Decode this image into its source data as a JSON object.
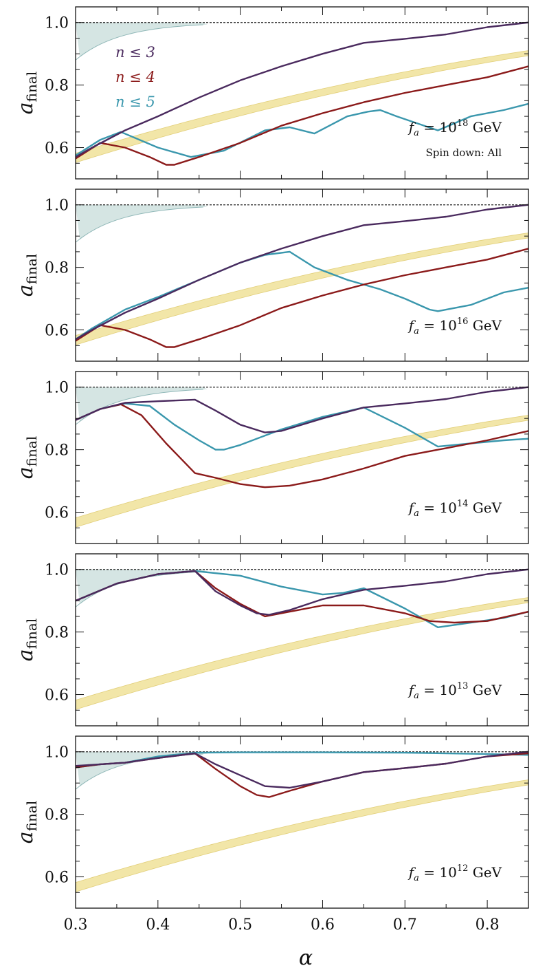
{
  "figure": {
    "xlabel": "α",
    "ylabel_main": "a",
    "ylabel_sub": "final",
    "xticks": [
      "0.3",
      "0.4",
      "0.5",
      "0.6",
      "0.7",
      "0.8"
    ],
    "yticks": [
      "0.6",
      "0.8",
      "1.0"
    ],
    "legend": [
      {
        "label": "n ≤ 3",
        "color": "#4a2a5e"
      },
      {
        "label": "n ≤ 4",
        "color": "#8b1a1a"
      },
      {
        "label": "n ≤ 5",
        "color": "#3a97ad"
      }
    ],
    "colors": {
      "band": "#f2e6a8",
      "band_edge": "#e2cf7a",
      "shade": "#b9d3d1",
      "shade_edge": "#8fb7b7"
    }
  },
  "chart_data": [
    {
      "type": "line",
      "annotation": "f_a = 10^18 GeV",
      "ann_prefix": "f",
      "ann_sub": "a",
      "ann_mid": " = 10",
      "ann_exp": "18",
      "ann_suffix": " GeV",
      "extra_text": "Spin down: All",
      "xlim": [
        0.3,
        0.85
      ],
      "ylim": [
        0.5,
        1.05
      ],
      "series": [
        {
          "name": "n ≤ 3",
          "x": [
            0.3,
            0.32,
            0.36,
            0.4,
            0.45,
            0.5,
            0.55,
            0.6,
            0.65,
            0.7,
            0.75,
            0.8,
            0.85
          ],
          "y": [
            0.57,
            0.6,
            0.655,
            0.7,
            0.76,
            0.815,
            0.86,
            0.9,
            0.935,
            0.948,
            0.962,
            0.985,
            1.0
          ]
        },
        {
          "name": "n ≤ 4",
          "x": [
            0.3,
            0.33,
            0.36,
            0.39,
            0.41,
            0.42,
            0.45,
            0.5,
            0.55,
            0.6,
            0.65,
            0.7,
            0.75,
            0.8,
            0.85
          ],
          "y": [
            0.565,
            0.615,
            0.6,
            0.57,
            0.545,
            0.545,
            0.57,
            0.615,
            0.67,
            0.71,
            0.745,
            0.775,
            0.8,
            0.825,
            0.86
          ]
        },
        {
          "name": "n ≤ 5",
          "x": [
            0.3,
            0.33,
            0.355,
            0.4,
            0.44,
            0.48,
            0.53,
            0.56,
            0.59,
            0.63,
            0.655,
            0.67,
            0.69,
            0.74,
            0.78,
            0.82,
            0.85
          ],
          "y": [
            0.575,
            0.625,
            0.65,
            0.6,
            0.57,
            0.59,
            0.655,
            0.665,
            0.645,
            0.7,
            0.715,
            0.72,
            0.7,
            0.655,
            0.7,
            0.72,
            0.74
          ]
        }
      ]
    },
    {
      "type": "line",
      "annotation": "f_a = 10^16 GeV",
      "ann_prefix": "f",
      "ann_sub": "a",
      "ann_mid": " = 10",
      "ann_exp": "16",
      "ann_suffix": " GeV",
      "xlim": [
        0.3,
        0.85
      ],
      "ylim": [
        0.5,
        1.05
      ],
      "series": [
        {
          "name": "n ≤ 3",
          "x": [
            0.3,
            0.32,
            0.36,
            0.4,
            0.45,
            0.5,
            0.55,
            0.6,
            0.65,
            0.7,
            0.75,
            0.8,
            0.85
          ],
          "y": [
            0.57,
            0.6,
            0.655,
            0.7,
            0.76,
            0.815,
            0.86,
            0.9,
            0.935,
            0.948,
            0.962,
            0.985,
            1.0
          ]
        },
        {
          "name": "n ≤ 4",
          "x": [
            0.3,
            0.33,
            0.36,
            0.39,
            0.41,
            0.42,
            0.45,
            0.5,
            0.55,
            0.6,
            0.65,
            0.7,
            0.75,
            0.8,
            0.85
          ],
          "y": [
            0.565,
            0.615,
            0.6,
            0.57,
            0.545,
            0.545,
            0.57,
            0.615,
            0.67,
            0.71,
            0.745,
            0.775,
            0.8,
            0.825,
            0.86
          ]
        },
        {
          "name": "n ≤ 5",
          "x": [
            0.3,
            0.32,
            0.36,
            0.4,
            0.45,
            0.5,
            0.53,
            0.56,
            0.59,
            0.63,
            0.67,
            0.7,
            0.73,
            0.74,
            0.78,
            0.82,
            0.85
          ],
          "y": [
            0.57,
            0.605,
            0.665,
            0.705,
            0.76,
            0.815,
            0.84,
            0.85,
            0.8,
            0.76,
            0.73,
            0.7,
            0.665,
            0.66,
            0.68,
            0.72,
            0.735
          ]
        }
      ]
    },
    {
      "type": "line",
      "annotation": "f_a = 10^14 GeV",
      "ann_prefix": "f",
      "ann_sub": "a",
      "ann_mid": " = 10",
      "ann_exp": "14",
      "ann_suffix": " GeV",
      "xlim": [
        0.3,
        0.85
      ],
      "ylim": [
        0.5,
        1.05
      ],
      "series": [
        {
          "name": "n ≤ 3",
          "x": [
            0.3,
            0.33,
            0.36,
            0.4,
            0.445,
            0.47,
            0.5,
            0.53,
            0.55,
            0.6,
            0.65,
            0.7,
            0.75,
            0.8,
            0.85
          ],
          "y": [
            0.895,
            0.93,
            0.95,
            0.955,
            0.96,
            0.925,
            0.88,
            0.855,
            0.86,
            0.9,
            0.935,
            0.948,
            0.962,
            0.985,
            1.0
          ]
        },
        {
          "name": "n ≤ 4",
          "x": [
            0.3,
            0.33,
            0.355,
            0.38,
            0.41,
            0.445,
            0.47,
            0.5,
            0.53,
            0.56,
            0.6,
            0.65,
            0.7,
            0.75,
            0.8,
            0.85
          ],
          "y": [
            0.895,
            0.93,
            0.945,
            0.91,
            0.82,
            0.725,
            0.71,
            0.69,
            0.68,
            0.685,
            0.705,
            0.74,
            0.78,
            0.805,
            0.83,
            0.86
          ]
        },
        {
          "name": "n ≤ 5",
          "x": [
            0.3,
            0.33,
            0.36,
            0.39,
            0.42,
            0.45,
            0.47,
            0.48,
            0.5,
            0.55,
            0.6,
            0.65,
            0.7,
            0.74,
            0.78,
            0.82,
            0.85
          ],
          "y": [
            0.895,
            0.93,
            0.948,
            0.94,
            0.88,
            0.83,
            0.8,
            0.8,
            0.815,
            0.865,
            0.905,
            0.935,
            0.87,
            0.81,
            0.82,
            0.83,
            0.835
          ]
        }
      ]
    },
    {
      "type": "line",
      "annotation": "f_a = 10^13 GeV",
      "ann_prefix": "f",
      "ann_sub": "a",
      "ann_mid": " = 10",
      "ann_exp": "13",
      "ann_suffix": " GeV",
      "xlim": [
        0.3,
        0.85
      ],
      "ylim": [
        0.5,
        1.05
      ],
      "series": [
        {
          "name": "n ≤ 3",
          "x": [
            0.3,
            0.35,
            0.4,
            0.445,
            0.47,
            0.5,
            0.52,
            0.535,
            0.56,
            0.6,
            0.65,
            0.7,
            0.75,
            0.8,
            0.85
          ],
          "y": [
            0.9,
            0.955,
            0.985,
            0.995,
            0.93,
            0.885,
            0.86,
            0.855,
            0.87,
            0.905,
            0.935,
            0.948,
            0.962,
            0.985,
            1.0
          ]
        },
        {
          "name": "n ≤ 4",
          "x": [
            0.3,
            0.35,
            0.4,
            0.445,
            0.47,
            0.5,
            0.53,
            0.56,
            0.6,
            0.65,
            0.7,
            0.73,
            0.76,
            0.8,
            0.85
          ],
          "y": [
            0.9,
            0.955,
            0.985,
            0.995,
            0.94,
            0.89,
            0.85,
            0.865,
            0.885,
            0.885,
            0.86,
            0.835,
            0.83,
            0.835,
            0.865
          ]
        },
        {
          "name": "n ≤ 5",
          "x": [
            0.3,
            0.35,
            0.4,
            0.445,
            0.5,
            0.55,
            0.6,
            0.625,
            0.65,
            0.7,
            0.74,
            0.78,
            0.82,
            0.85
          ],
          "y": [
            0.9,
            0.955,
            0.985,
            0.995,
            0.98,
            0.945,
            0.92,
            0.925,
            0.94,
            0.875,
            0.815,
            0.83,
            0.845,
            0.865
          ]
        }
      ]
    },
    {
      "type": "line",
      "annotation": "f_a = 10^12 GeV",
      "ann_prefix": "f",
      "ann_sub": "a",
      "ann_mid": " = 10",
      "ann_exp": "12",
      "ann_suffix": " GeV",
      "xlim": [
        0.3,
        0.85
      ],
      "ylim": [
        0.5,
        1.05
      ],
      "series": [
        {
          "name": "n ≤ 3",
          "x": [
            0.3,
            0.33,
            0.36,
            0.4,
            0.445,
            0.47,
            0.5,
            0.53,
            0.56,
            0.6,
            0.65,
            0.7,
            0.75,
            0.8,
            0.85
          ],
          "y": [
            0.955,
            0.96,
            0.965,
            0.98,
            0.995,
            0.96,
            0.925,
            0.89,
            0.885,
            0.905,
            0.935,
            0.948,
            0.962,
            0.985,
            1.0
          ]
        },
        {
          "name": "n ≤ 4",
          "x": [
            0.3,
            0.33,
            0.36,
            0.4,
            0.445,
            0.47,
            0.5,
            0.52,
            0.535,
            0.56,
            0.6,
            0.65,
            0.7,
            0.75,
            0.8,
            0.85
          ],
          "y": [
            0.95,
            0.96,
            0.965,
            0.98,
            0.995,
            0.945,
            0.89,
            0.862,
            0.855,
            0.875,
            0.905,
            0.935,
            0.948,
            0.962,
            0.985,
            0.995
          ]
        },
        {
          "name": "n ≤ 5",
          "x": [
            0.3,
            0.33,
            0.36,
            0.4,
            0.445,
            0.5,
            0.6,
            0.7,
            0.8,
            0.85
          ],
          "y": [
            0.95,
            0.96,
            0.965,
            0.985,
            0.997,
            0.998,
            0.998,
            0.997,
            0.993,
            0.99
          ]
        }
      ]
    }
  ]
}
